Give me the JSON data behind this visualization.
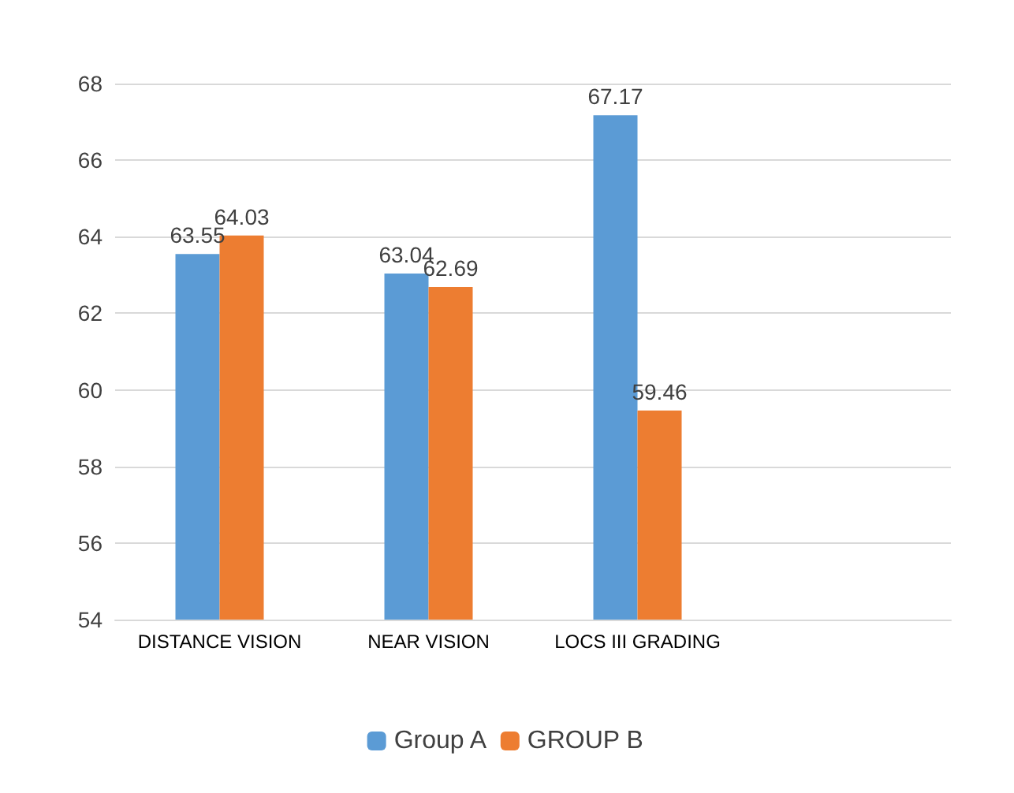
{
  "chart_data": {
    "type": "bar",
    "categories": [
      "DISTANCE VISION",
      "NEAR VISION",
      "LOCS III GRADING",
      null
    ],
    "series": [
      {
        "name": "Group A",
        "color": "#5b9bd5",
        "values": [
          63.55,
          63.04,
          67.17,
          null
        ]
      },
      {
        "name": "GROUP B",
        "color": "#ed7d31",
        "values": [
          64.03,
          62.69,
          59.46,
          null
        ]
      }
    ],
    "ylim": [
      54,
      68
    ],
    "yticks": [
      54,
      56,
      58,
      60,
      62,
      64,
      66,
      68
    ],
    "grid": "y",
    "legend": "bottom",
    "data_labels": true
  }
}
